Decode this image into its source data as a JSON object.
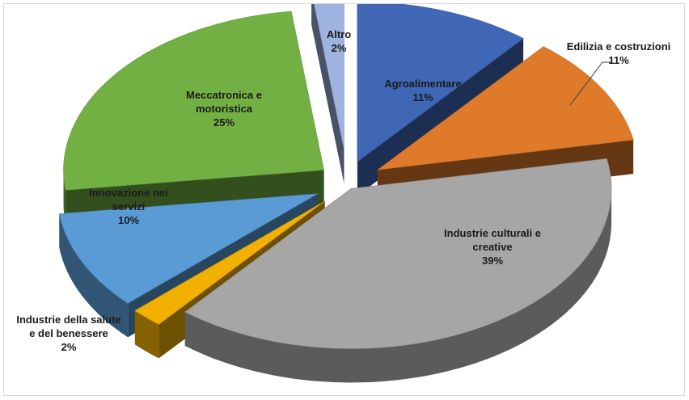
{
  "chart_data": {
    "type": "pie",
    "title": "",
    "slices": [
      {
        "name": "Agroalimentare",
        "value": 11,
        "label": "11%",
        "color": "#3f67b6"
      },
      {
        "name": "Edilizia e costruzioni",
        "value": 11,
        "label": "11%",
        "color": "#e07a2b"
      },
      {
        "name": "Industrie culturali e creative",
        "value": 39,
        "label": "39%",
        "color": "#a6a6a6"
      },
      {
        "name": "Industrie della salute e del benessere",
        "value": 2,
        "label": "2%",
        "color": "#f2b100"
      },
      {
        "name": "Innovazione nei servizi",
        "value": 10,
        "label": "10%",
        "color": "#5b9bd5"
      },
      {
        "name": "Meccatronica e motoristica",
        "value": 25,
        "label": "25%",
        "color": "#72b043"
      },
      {
        "name": "Altro",
        "value": 2,
        "label": "2%",
        "color": "#9fb3e0"
      }
    ],
    "legend": "none",
    "style": "3d-exploded"
  }
}
